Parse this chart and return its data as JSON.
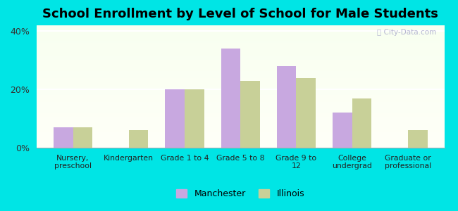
{
  "title": "School Enrollment by Level of School for Male Students",
  "categories": [
    "Nursery,\npreschool",
    "Kindergarten",
    "Grade 1 to 4",
    "Grade 5 to 8",
    "Grade 9 to\n12",
    "College\nundergrad",
    "Graduate or\nprofessional"
  ],
  "manchester": [
    7.0,
    0.0,
    20.0,
    34.0,
    28.0,
    12.0,
    0.0
  ],
  "illinois": [
    7.0,
    6.0,
    20.0,
    23.0,
    24.0,
    17.0,
    6.0
  ],
  "manchester_color": "#c8a8e0",
  "illinois_color": "#c8d098",
  "background_color": "#00e5e5",
  "title_fontsize": 13,
  "legend_labels": [
    "Manchester",
    "Illinois"
  ],
  "ylim": [
    0,
    42
  ],
  "yticks": [
    0,
    20,
    40
  ],
  "ytick_labels": [
    "0%",
    "20%",
    "40%"
  ],
  "bar_width": 0.35
}
